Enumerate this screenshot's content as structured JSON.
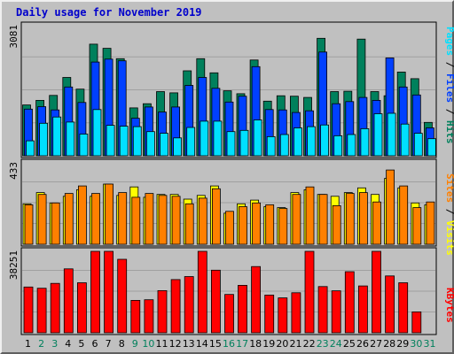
{
  "title": "Daily usage for November 2019",
  "colors": {
    "background": "#c0c0c0",
    "panel": "#c0c0c0",
    "grid": "#a0a0a0",
    "hits": "#00805c",
    "files": "#0040ff",
    "pages": "#00e0ff",
    "visits": "#ffff00",
    "sites": "#ff8000",
    "kbytes": "#ff0000",
    "title": "#0000cc",
    "day_normal": "#000000",
    "day_weekend": "#00805c"
  },
  "labels": {
    "hits_axis_max": "3081",
    "visits_axis_max": "433",
    "kbytes_axis_max": "38251",
    "hits_legend": {
      "pages": "Pages",
      "sep1": " / ",
      "files": "Files",
      "sep2": " / ",
      "hits": "Hits"
    },
    "visits_legend": {
      "sites": "Sites",
      "sep": " / ",
      "visits": "Visits"
    },
    "kbytes_legend": "KBytes"
  },
  "chart_data": [
    {
      "type": "bar",
      "title": "Hits / Files / Pages",
      "categories": [
        "1",
        "2",
        "3",
        "4",
        "5",
        "6",
        "7",
        "8",
        "9",
        "10",
        "11",
        "12",
        "13",
        "14",
        "15",
        "16",
        "17",
        "18",
        "19",
        "20",
        "21",
        "22",
        "23",
        "24",
        "25",
        "26",
        "27",
        "28",
        "29",
        "30",
        "31"
      ],
      "ylim": [
        0,
        3081
      ],
      "series": [
        {
          "name": "Hits",
          "values": [
            1220,
            1330,
            1450,
            1880,
            1600,
            2680,
            2580,
            2330,
            1150,
            1250,
            1540,
            1510,
            2040,
            2330,
            1990,
            1560,
            1490,
            2300,
            1310,
            1440,
            1430,
            1400,
            2820,
            1540,
            1550,
            2800,
            1540,
            1440,
            2010,
            1850,
            800
          ]
        },
        {
          "name": "Files",
          "values": [
            1120,
            1180,
            1100,
            1650,
            1280,
            2250,
            2320,
            2280,
            900,
            1170,
            1050,
            1170,
            1690,
            1880,
            1620,
            1290,
            1430,
            2140,
            1110,
            1100,
            1040,
            1080,
            2490,
            1250,
            1300,
            1400,
            1330,
            2350,
            1650,
            1460,
            670
          ]
        },
        {
          "name": "Pages",
          "values": [
            360,
            780,
            930,
            810,
            520,
            1110,
            730,
            710,
            700,
            580,
            540,
            430,
            680,
            830,
            830,
            580,
            610,
            860,
            460,
            510,
            670,
            700,
            740,
            480,
            510,
            650,
            1010,
            1020,
            760,
            540,
            410
          ]
        }
      ]
    },
    {
      "type": "bar",
      "title": "Visits / Sites",
      "categories": [
        "1",
        "2",
        "3",
        "4",
        "5",
        "6",
        "7",
        "8",
        "9",
        "10",
        "11",
        "12",
        "13",
        "14",
        "15",
        "16",
        "17",
        "18",
        "19",
        "20",
        "21",
        "22",
        "23",
        "24",
        "25",
        "26",
        "27",
        "28",
        "29",
        "30",
        "31"
      ],
      "ylim": [
        0,
        433
      ],
      "series": [
        {
          "name": "Visits",
          "values": [
            215,
            275,
            220,
            255,
            290,
            255,
            320,
            260,
            305,
            250,
            265,
            265,
            240,
            260,
            310,
            165,
            215,
            235,
            200,
            195,
            275,
            290,
            265,
            255,
            275,
            300,
            265,
            350,
            300,
            220,
            210
          ]
        },
        {
          "name": "Sites",
          "values": [
            210,
            265,
            220,
            270,
            310,
            270,
            320,
            275,
            250,
            270,
            260,
            255,
            215,
            245,
            295,
            175,
            200,
            220,
            210,
            190,
            265,
            305,
            265,
            205,
            270,
            275,
            225,
            395,
            310,
            195,
            225
          ]
        }
      ]
    },
    {
      "type": "bar",
      "title": "KBytes",
      "categories": [
        "1",
        "2",
        "3",
        "4",
        "5",
        "6",
        "7",
        "8",
        "9",
        "10",
        "11",
        "12",
        "13",
        "14",
        "15",
        "16",
        "17",
        "18",
        "19",
        "20",
        "21",
        "22",
        "23",
        "24",
        "25",
        "26",
        "27",
        "28",
        "29",
        "30",
        "31"
      ],
      "ylim": [
        0,
        38251
      ],
      "series": [
        {
          "name": "KBytes",
          "values": [
            21500,
            20900,
            23200,
            30000,
            23500,
            38251,
            38251,
            34500,
            15200,
            15500,
            19800,
            25000,
            26400,
            38251,
            29400,
            18000,
            22300,
            31100,
            17700,
            16400,
            18800,
            38251,
            21700,
            19700,
            28700,
            22000,
            38251,
            26700,
            23500,
            9800,
            0
          ]
        }
      ]
    }
  ],
  "x_labels": [
    "1",
    "2",
    "3",
    "4",
    "5",
    "6",
    "7",
    "8",
    "9",
    "10",
    "11",
    "12",
    "13",
    "14",
    "15",
    "16",
    "17",
    "18",
    "19",
    "20",
    "21",
    "22",
    "23",
    "24",
    "25",
    "26",
    "27",
    "28",
    "29",
    "30",
    "31"
  ],
  "weekend_days": [
    2,
    3,
    9,
    10,
    16,
    17,
    23,
    24,
    30,
    31
  ]
}
